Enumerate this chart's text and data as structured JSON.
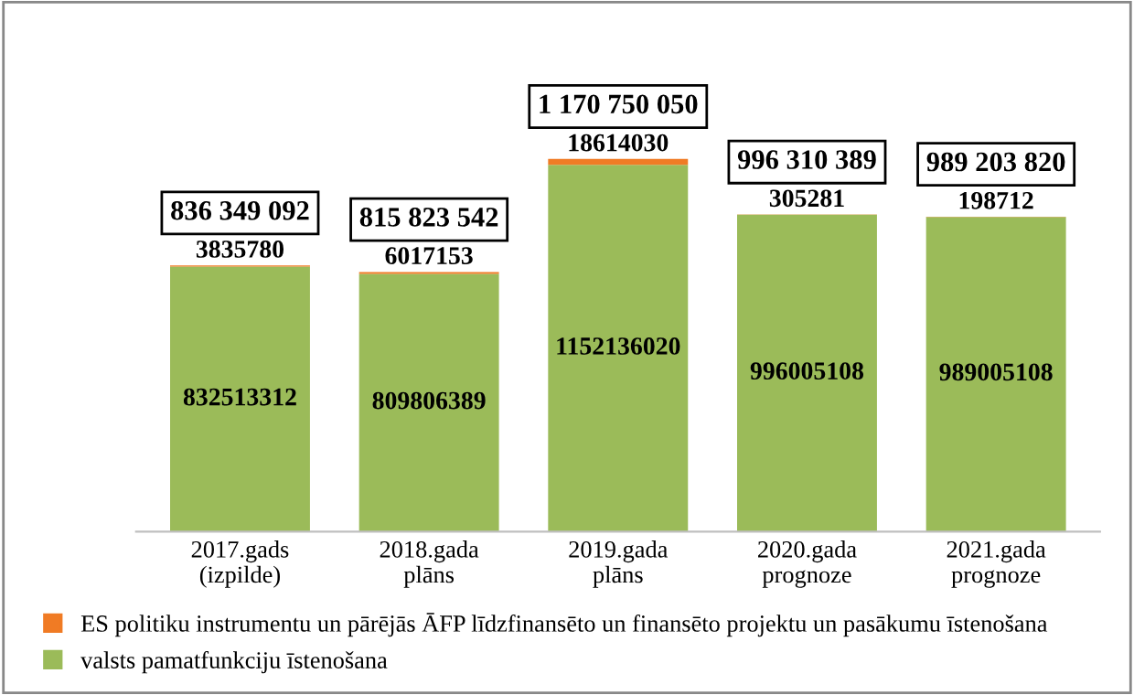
{
  "chart_data": {
    "type": "bar",
    "stacked": true,
    "data_labels": true,
    "grid": false,
    "legend": "bottom",
    "categories": [
      "2017.gads\n(izpilde)",
      "2018.gada\nplāns",
      "2019.gada\nplāns",
      "2020.gada\nprognoze",
      "2021.gada\nprognoze"
    ],
    "series": [
      {
        "name": "valsts pamatfunkciju īstenošana",
        "color": "#9bbb59",
        "values": [
          832513312,
          809806389,
          1152136020,
          996005108,
          989005108
        ]
      },
      {
        "name": "ES politiku instrumentu un pārējās ĀFP līdzfinansēto un finansēto projektu un pasākumu īstenošana",
        "color": "#f07b24",
        "values": [
          3835780,
          6017153,
          18614030,
          305281,
          198712
        ]
      }
    ],
    "totals": [
      "836 349 092",
      "815 823 542",
      "1 170 750 050",
      "996 310 389",
      "989 203 820"
    ]
  }
}
